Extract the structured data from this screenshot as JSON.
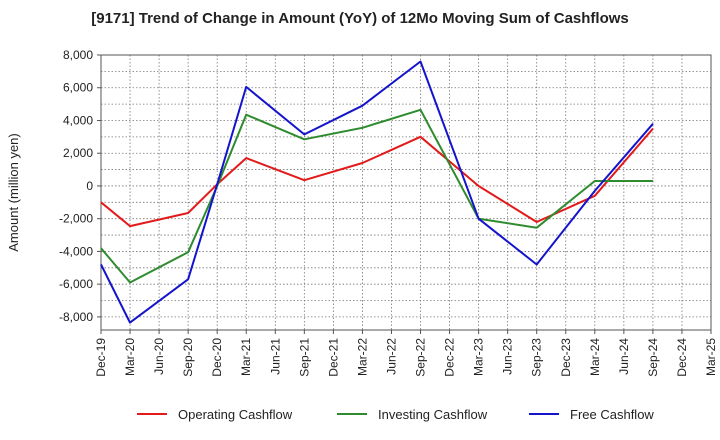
{
  "chart_data": {
    "type": "line",
    "title": "[9171]  Trend of Change in Amount (YoY) of 12Mo Moving Sum of Cashflows",
    "xlabel": "",
    "ylabel": "Amount (million yen)",
    "ylim": [
      -8800,
      8000
    ],
    "yticks": [
      8000,
      6000,
      4000,
      2000,
      0,
      -2000,
      -4000,
      -6000,
      -8000
    ],
    "ytick_labels": [
      "8,000",
      "6,000",
      "4,000",
      "2,000",
      "0",
      "-2,000",
      "-4,000",
      "-6,000",
      "-8,000"
    ],
    "categories": [
      "Dec-19",
      "Mar-20",
      "Jun-20",
      "Sep-20",
      "Dec-20",
      "Mar-21",
      "Jun-21",
      "Sep-21",
      "Dec-21",
      "Mar-22",
      "Jun-22",
      "Sep-22",
      "Dec-22",
      "Mar-23",
      "Jun-23",
      "Sep-23",
      "Dec-23",
      "Mar-24",
      "Jun-24",
      "Sep-24",
      "Dec-24",
      "Mar-25"
    ],
    "grid": true,
    "legend_position": "bottom",
    "series": [
      {
        "name": "Operating Cashflow",
        "color": "#e31a1c",
        "values": [
          -1000,
          -2450,
          null,
          -1650,
          100,
          1700,
          null,
          350,
          null,
          1400,
          null,
          3000,
          null,
          0,
          null,
          -2200,
          null,
          -600,
          null,
          3500,
          null,
          null
        ]
      },
      {
        "name": "Investing Cashflow",
        "color": "#2e8b2e",
        "values": [
          -3800,
          -5900,
          null,
          -4050,
          0,
          4350,
          null,
          2850,
          null,
          3550,
          null,
          4650,
          null,
          -2000,
          null,
          -2550,
          null,
          300,
          null,
          300,
          null,
          null
        ]
      },
      {
        "name": "Free Cashflow",
        "color": "#1414cc",
        "values": [
          -4800,
          -8350,
          null,
          -5700,
          100,
          6050,
          null,
          3150,
          null,
          4900,
          null,
          7600,
          null,
          -2000,
          null,
          -4800,
          null,
          -300,
          null,
          3800,
          null,
          null
        ]
      }
    ]
  }
}
